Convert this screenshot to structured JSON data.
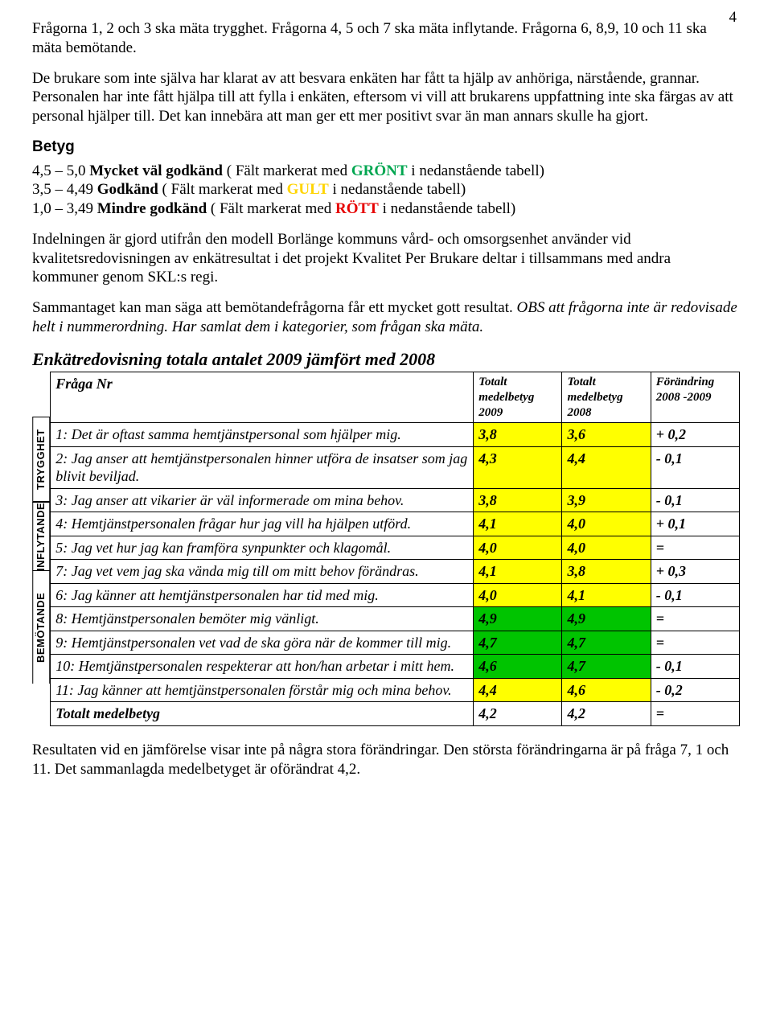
{
  "page_number": "4",
  "paragraphs": {
    "p1": "Frågorna 1, 2 och 3 ska mäta trygghet. Frågorna 4, 5 och 7 ska mäta inflytande. Frågorna 6, 8,9, 10 och 11 ska mäta bemötande.",
    "p2": "De brukare som inte själva har klarat av att besvara enkäten har fått ta hjälp av anhöriga, närstående, grannar. Personalen har inte fått hjälpa till att fylla i enkäten, eftersom vi vill att brukarens uppfattning inte ska färgas av att personal hjälper till. Det kan innebära att man ger ett mer positivt svar än man annars skulle ha gjort.",
    "betyg_label": "Betyg",
    "betyg_lines": {
      "l1_prefix": "4,5 – 5,0   ",
      "l1_bold": "Mycket väl godkänd",
      "l1_mid": "  ( Fält markerat med ",
      "l1_color_word": "GRÖNT",
      "l1_suffix": " i nedanstående tabell)",
      "l2_prefix": "3,5 – 4,49 ",
      "l2_bold": "Godkänd",
      "l2_mid": "  ( Fält markerat med ",
      "l2_color_word": "GULT",
      "l2_suffix": " i nedanstående tabell)",
      "l3_prefix": "1,0 – 3,49  ",
      "l3_bold": "Mindre godkänd",
      "l3_mid": "  ( Fält markerat med ",
      "l3_color_word": "RÖTT",
      "l3_suffix": " i nedanstående tabell)"
    },
    "p3": "Indelningen är gjord utifrån den modell Borlänge kommuns vård- och omsorgsenhet använder vid kvalitetsredovisningen av enkätresultat i det projekt Kvalitet Per Brukare deltar i tillsammans med andra kommuner genom SKL:s regi.",
    "p4_a": "Sammantaget kan man säga att bemötandefrågorna får ett mycket gott resultat. ",
    "p4_b": "OBS att frågorna inte är redovisade helt i nummerordning. Har samlat dem i kategorier, som frågan ska mäta.",
    "section_title": "Enkätredovisning totala antalet 2009 jämfört med 2008",
    "footer": "Resultaten vid en jämförelse visar inte på några stora förändringar. Den största förändringarna är på  fråga 7, 1 och 11. Det sammanlagda medelbetyget är oförändrat 4,2."
  },
  "table": {
    "category_labels": [
      "TRYGGHET",
      "INFLYTANDE",
      "BEMÖTANDE"
    ],
    "header": {
      "c0": "Fråga Nr",
      "c1": "Totalt medelbetyg 2009",
      "c2": "Totalt medelbetyg 2008",
      "c3": "Förändring 2008 -2009"
    },
    "rows": [
      {
        "q": "1: Det är oftast samma hemtjänstpersonal som hjälper mig.",
        "v1": "3,8",
        "v2": "3,6",
        "d": "+ 0,2",
        "c": "y"
      },
      {
        "q": "2: Jag anser att hemtjänstpersonalen hinner utföra de insatser som jag blivit beviljad.",
        "v1": "4,3",
        "v2": "4,4",
        "d": "- 0,1",
        "c": "y"
      },
      {
        "q": "3: Jag anser att vikarier är väl informerade om mina behov.",
        "v1": "3,8",
        "v2": "3,9",
        "d": "- 0,1",
        "c": "y"
      },
      {
        "q": "4: Hemtjänstpersonalen frågar hur jag vill ha hjälpen utförd.",
        "v1": "4,1",
        "v2": "4,0",
        "d": "+ 0,1",
        "c": "y"
      },
      {
        "q": "5: Jag vet hur jag kan framföra synpunkter och klagomål.",
        "v1": "4,0",
        "v2": "4,0",
        "d": "=",
        "c": "y"
      },
      {
        "q": "7: Jag vet vem jag ska vända mig till om mitt behov förändras.",
        "v1": "4,1",
        "v2": "3,8",
        "d": "+ 0,3",
        "c": "y"
      },
      {
        "q": "6: Jag känner att hemtjänstpersonalen har tid med mig.",
        "v1": "4,0",
        "v2": "4,1",
        "d": "- 0,1",
        "c": "y"
      },
      {
        "q": "8: Hemtjänstpersonalen bemöter mig vänligt.",
        "v1": "4,9",
        "v2": "4,9",
        "d": "=",
        "c": "g"
      },
      {
        "q": "9: Hemtjänstpersonalen vet vad de ska göra när de kommer till mig.",
        "v1": "4,7",
        "v2": "4,7",
        "d": "=",
        "c": "g"
      },
      {
        "q": "10: Hemtjänstpersonalen respekterar att hon/han arbetar i mitt hem.",
        "v1": "4,6",
        "v2": "4,7",
        "d": "- 0,1",
        "c": "g"
      },
      {
        "q": "11: Jag känner att hemtjänstpersonalen förstår mig och mina behov.",
        "v1": "4,4",
        "v2": "4,6",
        "d": "- 0,2",
        "c": "y"
      }
    ],
    "total": {
      "label": "Totalt medelbetyg",
      "v1": "4,2",
      "v2": "4,2",
      "d": "="
    },
    "row_heights": {
      "header": 55,
      "r": [
        28,
        48,
        28,
        28,
        28,
        28,
        28,
        28,
        28,
        28,
        28
      ],
      "total": 28
    },
    "cat_spans": [
      3,
      3,
      5
    ],
    "colors": {
      "yellow": "#ffff00",
      "green": "#00c400"
    }
  }
}
